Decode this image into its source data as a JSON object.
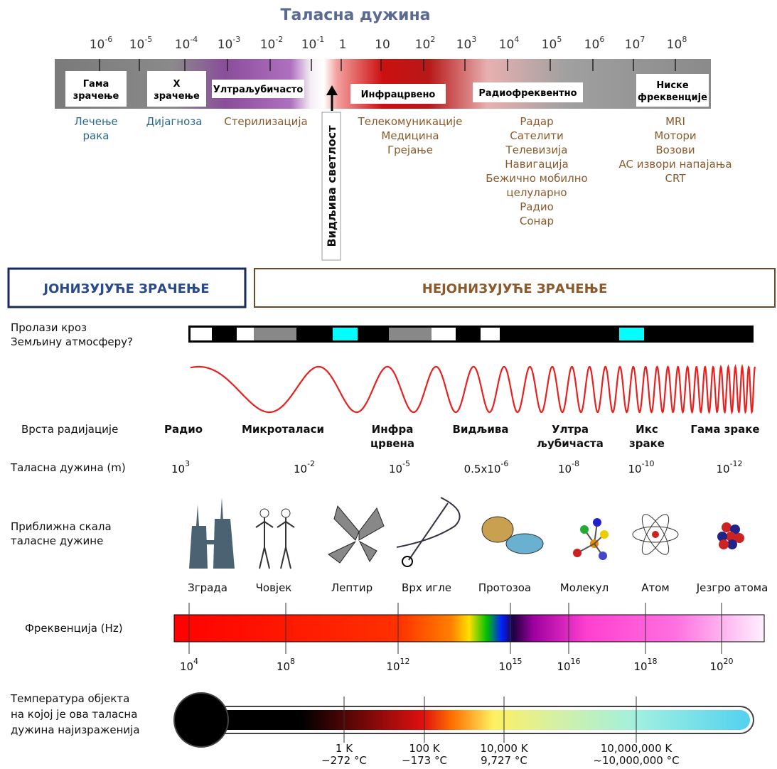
{
  "top": {
    "title": "Таласна дужина",
    "scale": [
      {
        "base": "10",
        "exp": "-6"
      },
      {
        "base": "10",
        "exp": "-5"
      },
      {
        "base": "10",
        "exp": "-4"
      },
      {
        "base": "10",
        "exp": "-3"
      },
      {
        "base": "10",
        "exp": "-2"
      },
      {
        "base": "10",
        "exp": "-1"
      },
      {
        "base": "1"
      },
      {
        "base": "10"
      },
      {
        "base": "10",
        "exp": "2"
      },
      {
        "base": "10",
        "exp": "3"
      },
      {
        "base": "10",
        "exp": "4"
      },
      {
        "base": "10",
        "exp": "5"
      },
      {
        "base": "10",
        "exp": "6"
      },
      {
        "base": "10",
        "exp": "7"
      },
      {
        "base": "10",
        "exp": "8"
      }
    ],
    "bands": [
      [
        "Гама",
        "зрачење"
      ],
      [
        "X",
        "зрачење"
      ],
      [
        "Ултраљубичасто"
      ],
      [
        "Инфрацрвено"
      ],
      [
        "Радиофреквентно"
      ],
      [
        "Ниске",
        "фреквенције"
      ]
    ],
    "visible": "Видљива светлост",
    "uses": [
      [
        "Лечење",
        "рака"
      ],
      [
        "Дијагноза"
      ],
      [
        "Стерилизација"
      ],
      [
        "Телекомуникације",
        "Медицина",
        "Грејање"
      ],
      [
        "Радар",
        "Сателити",
        "Телевизија",
        "Навигација",
        "Бежично мобилно",
        "целуларно",
        "Радио",
        "Сонар"
      ],
      [
        "MRI",
        "Мотори",
        "Возови",
        "AC извори напајања",
        "CRT"
      ]
    ]
  },
  "radiation": {
    "ionizing": "ЈОНИЗУЈУЋЕ ЗРАЧЕЊЕ",
    "non_ionizing": "НЕЈОНИЗУЈУЋЕ ЗРАЧЕЊЕ"
  },
  "atmosphere": {
    "label": [
      "Пролази кроз",
      "Земљину атмосферу?"
    ]
  },
  "types": {
    "label": "Врста радијације",
    "items": [
      [
        "Радио"
      ],
      [
        "Микроталаси"
      ],
      [
        "Инфра",
        "црвена"
      ],
      [
        "Видљива"
      ],
      [
        "Ултра",
        "љубичаста"
      ],
      [
        "Икс",
        "зраке"
      ],
      [
        "Гама зраке"
      ]
    ]
  },
  "wavelength": {
    "label": "Таласна дужина (m)",
    "items": [
      {
        "base": "10",
        "exp": "3"
      },
      {
        "base": "10",
        "exp": "-2"
      },
      {
        "base": "10",
        "exp": "-5"
      },
      {
        "base": "0.5x10",
        "exp": "-6"
      },
      {
        "base": "10",
        "exp": "-8"
      },
      {
        "base": "10",
        "exp": "-10"
      },
      {
        "base": "10",
        "exp": "-12"
      }
    ]
  },
  "scale": {
    "label": [
      "Приближна скала",
      "таласне дужине"
    ],
    "items": [
      "Зграда",
      "Човјек",
      "Лептир",
      "Врх игле",
      "Протозоа",
      "Молекул",
      "Атом",
      "Језгро атома"
    ]
  },
  "frequency": {
    "label": "Фреквенција (Hz)",
    "items": [
      {
        "base": "10",
        "exp": "4"
      },
      {
        "base": "10",
        "exp": "8"
      },
      {
        "base": "10",
        "exp": "12"
      },
      {
        "base": "10",
        "exp": "15"
      },
      {
        "base": "10",
        "exp": "16"
      },
      {
        "base": "10",
        "exp": "18"
      },
      {
        "base": "10",
        "exp": "20"
      }
    ]
  },
  "temperature": {
    "label": [
      "Температура објекта",
      "на којој је ова таласна",
      "дужина најизраженија"
    ],
    "items": [
      [
        "1 K",
        "−272 °C"
      ],
      [
        "100 K",
        "−173 °C"
      ],
      [
        "10,000 K",
        "9,727 °C"
      ],
      [
        "10,000,000 K",
        "~10,000,000 °C"
      ]
    ]
  }
}
